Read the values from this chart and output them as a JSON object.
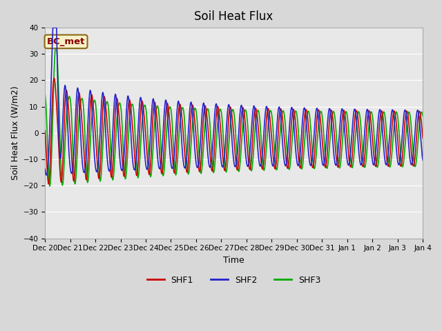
{
  "title": "Soil Heat Flux",
  "ylabel": "Soil Heat Flux (W/m2)",
  "xlabel": "Time",
  "ylim": [
    -40,
    40
  ],
  "fig_bg_color": "#d8d8d8",
  "plot_bg_color": "#e8e8e8",
  "annotation_text": "BC_met",
  "annotation_bg": "#f5f0c8",
  "annotation_border": "#8b6914",
  "annotation_text_color": "#8b0000",
  "colors": {
    "SHF1": "#cc0000",
    "SHF2": "#2222cc",
    "SHF3": "#00aa00"
  },
  "tick_labels": [
    "Dec 20",
    "Dec 21",
    "Dec 22",
    "Dec 23",
    "Dec 24",
    "Dec 25",
    "Dec 26",
    "Dec 27",
    "Dec 28",
    "Dec 29",
    "Dec 30",
    "Dec 31",
    "Jan 1",
    "Jan 2",
    "Jan 3",
    "Jan 4"
  ],
  "yticks": [
    -40,
    -30,
    -20,
    -10,
    0,
    10,
    20,
    30,
    40
  ],
  "line_width": 1.2,
  "legend_fontsize": 9,
  "title_fontsize": 12,
  "tick_fontsize": 7.5,
  "ylabel_fontsize": 9
}
